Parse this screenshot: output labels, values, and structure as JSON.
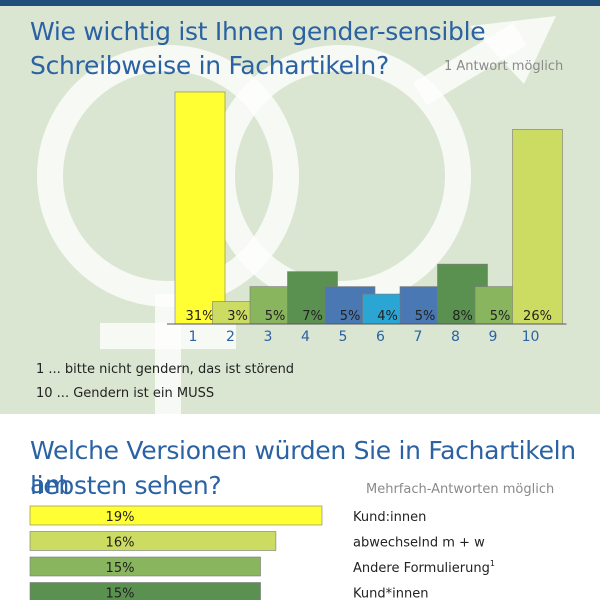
{
  "question1": {
    "title_line1": "Wie wichtig ist Ihnen gender-sensible",
    "title_line2": "Schreibweise in Fachartikeln?",
    "note": "1 Antwort möglich",
    "legend": [
      "1 ... bitte nicht gendern, das ist störend",
      "10 ... Gendern ist ein MUSS"
    ]
  },
  "question2": {
    "title_line1": "Welche Versionen würden Sie in Fachartikeln am",
    "title_line2": "liebsten sehen?",
    "note": "Mehrfach-Antworten möglich"
  },
  "colors": {
    "title": "#2a62a3",
    "panel_bg": "#dbe6d2",
    "axis_label": "#2a62a3"
  },
  "chart_data": [
    {
      "type": "bar",
      "orientation": "vertical",
      "categories": [
        "1",
        "2",
        "3",
        "4",
        "5",
        "6",
        "7",
        "8",
        "9",
        "10"
      ],
      "values": [
        31,
        3,
        5,
        7,
        5,
        4,
        5,
        8,
        5,
        26
      ],
      "labels": [
        "31%",
        "3%",
        "5%",
        "7%",
        "5%",
        "4%",
        "5%",
        "8%",
        "5%",
        "26%"
      ],
      "colors": [
        "#ffff33",
        "#ccdc63",
        "#88b55e",
        "#5a9150",
        "#4a78b2",
        "#2aa5d4",
        "#4a78b2",
        "#5a9150",
        "#88b55e",
        "#ccdc63"
      ],
      "ylim": [
        0,
        31
      ]
    },
    {
      "type": "bar",
      "orientation": "horizontal",
      "categories": [
        "Kund:innen",
        "abwechselnd m + w",
        "Andere Formulierung",
        "Kund*innen"
      ],
      "footnotes": [
        "",
        "",
        "1",
        ""
      ],
      "values": [
        19,
        16,
        15,
        15
      ],
      "labels": [
        "19%",
        "16%",
        "15%",
        "15%"
      ],
      "colors": [
        "#ffff33",
        "#ccdc63",
        "#88b55e",
        "#5a9150"
      ],
      "xlim": [
        0,
        19
      ]
    }
  ]
}
